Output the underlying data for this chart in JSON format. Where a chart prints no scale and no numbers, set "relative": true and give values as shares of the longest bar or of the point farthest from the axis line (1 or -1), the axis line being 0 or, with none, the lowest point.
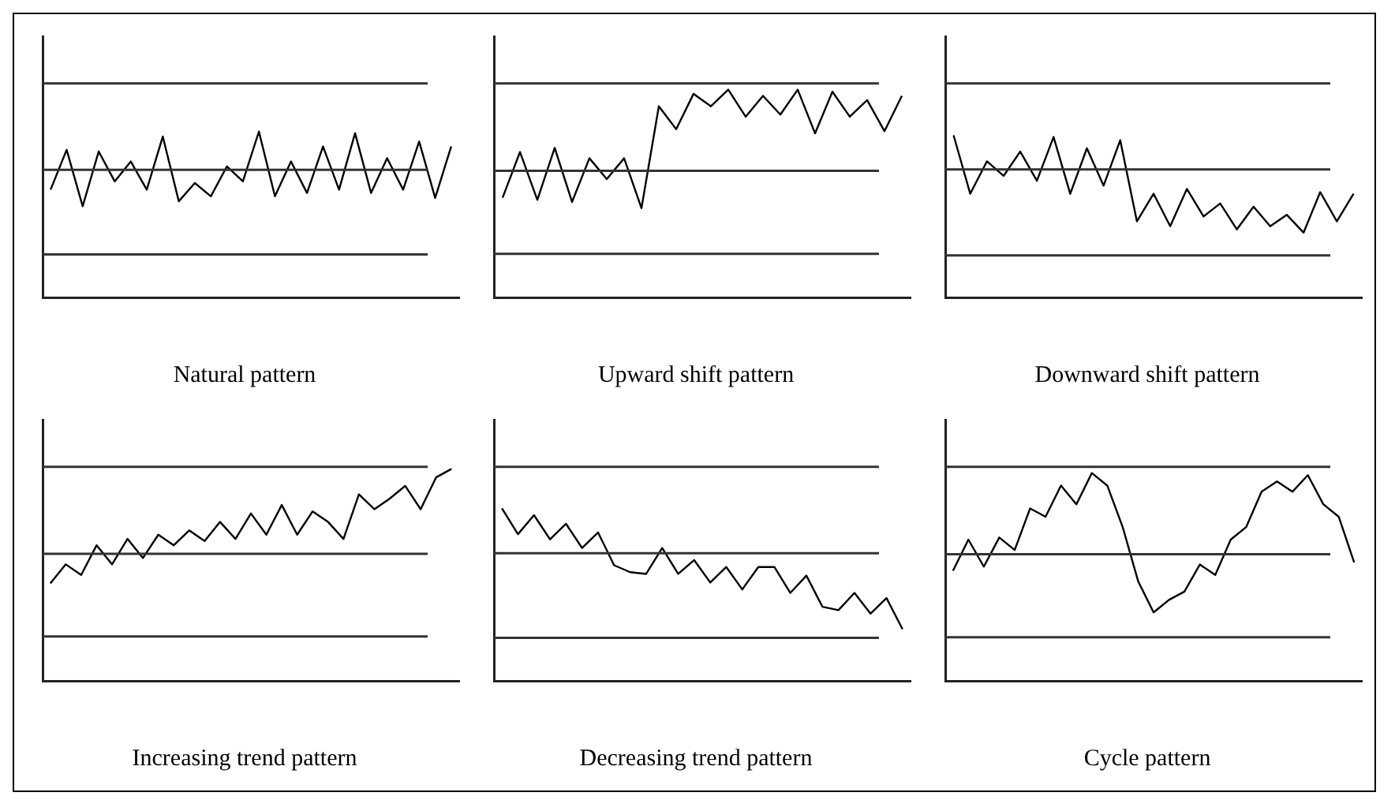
{
  "chart_data": [
    {
      "type": "line",
      "title": "Natural pattern",
      "relative": true,
      "categories": [
        null,
        null,
        null,
        null,
        null,
        null,
        null,
        null,
        null,
        null,
        null,
        null,
        null,
        null,
        null,
        null,
        null,
        null,
        null,
        null,
        null,
        null,
        null,
        null,
        null,
        null
      ],
      "series": [
        {
          "color": "#000000",
          "values": [
            0.65,
            0.89,
            0.55,
            0.88,
            0.7,
            0.82,
            0.65,
            0.97,
            0.58,
            0.69,
            0.61,
            0.79,
            0.7,
            1,
            0.61,
            0.82,
            0.63,
            0.91,
            0.65,
            0.99,
            0.63,
            0.84,
            0.65,
            0.94,
            0.6,
            0.91
          ]
        }
      ],
      "ref_lines": [
        {
          "axis": "y",
          "value": 0.26,
          "color": "#333333"
        },
        {
          "axis": "y",
          "value": 0.77,
          "color": "#333333"
        },
        {
          "axis": "y",
          "value": 1.29,
          "color": "#333333"
        }
      ],
      "grid": false,
      "legend": false,
      "marker": "none"
    },
    {
      "type": "line",
      "title": "Upward shift pattern",
      "relative": true,
      "categories": [
        null,
        null,
        null,
        null,
        null,
        null,
        null,
        null,
        null,
        null,
        null,
        null,
        null,
        null,
        null,
        null,
        null,
        null,
        null,
        null,
        null,
        null,
        null,
        null
      ],
      "series": [
        {
          "color": "#000000",
          "values": [
            0.48,
            0.7,
            0.47,
            0.72,
            0.46,
            0.67,
            0.57,
            0.67,
            0.43,
            0.92,
            0.81,
            0.98,
            0.92,
            1,
            0.87,
            0.97,
            0.88,
            1,
            0.79,
            0.99,
            0.87,
            0.95,
            0.8,
            0.97
          ]
        }
      ],
      "ref_lines": [
        {
          "axis": "y",
          "value": 0.21,
          "color": "#333333"
        },
        {
          "axis": "y",
          "value": 0.61,
          "color": "#333333"
        },
        {
          "axis": "y",
          "value": 1.03,
          "color": "#333333"
        }
      ],
      "grid": false,
      "legend": false,
      "marker": "none"
    },
    {
      "type": "line",
      "title": "Downward shift pattern",
      "relative": true,
      "categories": [
        null,
        null,
        null,
        null,
        null,
        null,
        null,
        null,
        null,
        null,
        null,
        null,
        null,
        null,
        null,
        null,
        null,
        null,
        null,
        null,
        null,
        null,
        null,
        null,
        null
      ],
      "series": [
        {
          "color": "#000000",
          "values": [
            1,
            0.64,
            0.84,
            0.75,
            0.9,
            0.72,
            0.99,
            0.64,
            0.92,
            0.69,
            0.97,
            0.47,
            0.64,
            0.44,
            0.67,
            0.5,
            0.58,
            0.42,
            0.56,
            0.44,
            0.51,
            0.4,
            0.65,
            0.47,
            0.64
          ]
        }
      ],
      "ref_lines": [
        {
          "axis": "y",
          "value": 0.26,
          "color": "#333333"
        },
        {
          "axis": "y",
          "value": 0.79,
          "color": "#333333"
        },
        {
          "axis": "y",
          "value": 1.32,
          "color": "#333333"
        }
      ],
      "grid": false,
      "legend": false,
      "marker": "none"
    },
    {
      "type": "line",
      "title": "Increasing trend pattern",
      "relative": true,
      "categories": [
        null,
        null,
        null,
        null,
        null,
        null,
        null,
        null,
        null,
        null,
        null,
        null,
        null,
        null,
        null,
        null,
        null,
        null,
        null,
        null,
        null,
        null,
        null,
        null,
        null,
        null,
        null
      ],
      "series": [
        {
          "color": "#000000",
          "values": [
            0.46,
            0.55,
            0.5,
            0.64,
            0.55,
            0.67,
            0.58,
            0.69,
            0.64,
            0.71,
            0.66,
            0.75,
            0.67,
            0.79,
            0.69,
            0.83,
            0.69,
            0.8,
            0.75,
            0.67,
            0.88,
            0.81,
            0.86,
            0.92,
            0.81,
            0.96,
            1
          ]
        }
      ],
      "ref_lines": [
        {
          "axis": "y",
          "value": 0.21,
          "color": "#333333"
        },
        {
          "axis": "y",
          "value": 0.6,
          "color": "#333333"
        },
        {
          "axis": "y",
          "value": 1.01,
          "color": "#333333"
        }
      ],
      "grid": false,
      "legend": false,
      "marker": "none"
    },
    {
      "type": "line",
      "title": "Decreasing trend pattern",
      "relative": true,
      "categories": [
        null,
        null,
        null,
        null,
        null,
        null,
        null,
        null,
        null,
        null,
        null,
        null,
        null,
        null,
        null,
        null,
        null,
        null,
        null,
        null,
        null,
        null,
        null,
        null,
        null,
        null
      ],
      "series": [
        {
          "color": "#000000",
          "values": [
            1,
            0.85,
            0.96,
            0.82,
            0.91,
            0.77,
            0.86,
            0.67,
            0.63,
            0.62,
            0.77,
            0.62,
            0.7,
            0.57,
            0.66,
            0.53,
            0.66,
            0.66,
            0.51,
            0.61,
            0.43,
            0.41,
            0.51,
            0.39,
            0.48,
            0.3
          ]
        }
      ],
      "ref_lines": [
        {
          "axis": "y",
          "value": 0.25,
          "color": "#333333"
        },
        {
          "axis": "y",
          "value": 0.74,
          "color": "#333333"
        },
        {
          "axis": "y",
          "value": 1.24,
          "color": "#333333"
        }
      ],
      "grid": false,
      "legend": false,
      "marker": "none"
    },
    {
      "type": "line",
      "title": "Cycle pattern",
      "relative": true,
      "categories": [
        null,
        null,
        null,
        null,
        null,
        null,
        null,
        null,
        null,
        null,
        null,
        null,
        null,
        null,
        null,
        null,
        null,
        null,
        null,
        null,
        null,
        null,
        null,
        null,
        null,
        null,
        null
      ],
      "series": [
        {
          "color": "#000000",
          "values": [
            0.53,
            0.68,
            0.55,
            0.69,
            0.63,
            0.83,
            0.79,
            0.94,
            0.85,
            1,
            0.94,
            0.74,
            0.48,
            0.33,
            0.39,
            0.43,
            0.56,
            0.51,
            0.68,
            0.74,
            0.91,
            0.96,
            0.91,
            0.99,
            0.85,
            0.79,
            0.57
          ]
        }
      ],
      "ref_lines": [
        {
          "axis": "y",
          "value": 0.21,
          "color": "#333333"
        },
        {
          "axis": "y",
          "value": 0.61,
          "color": "#333333"
        },
        {
          "axis": "y",
          "value": 1.03,
          "color": "#333333"
        }
      ],
      "grid": false,
      "legend": false,
      "marker": "none"
    }
  ]
}
